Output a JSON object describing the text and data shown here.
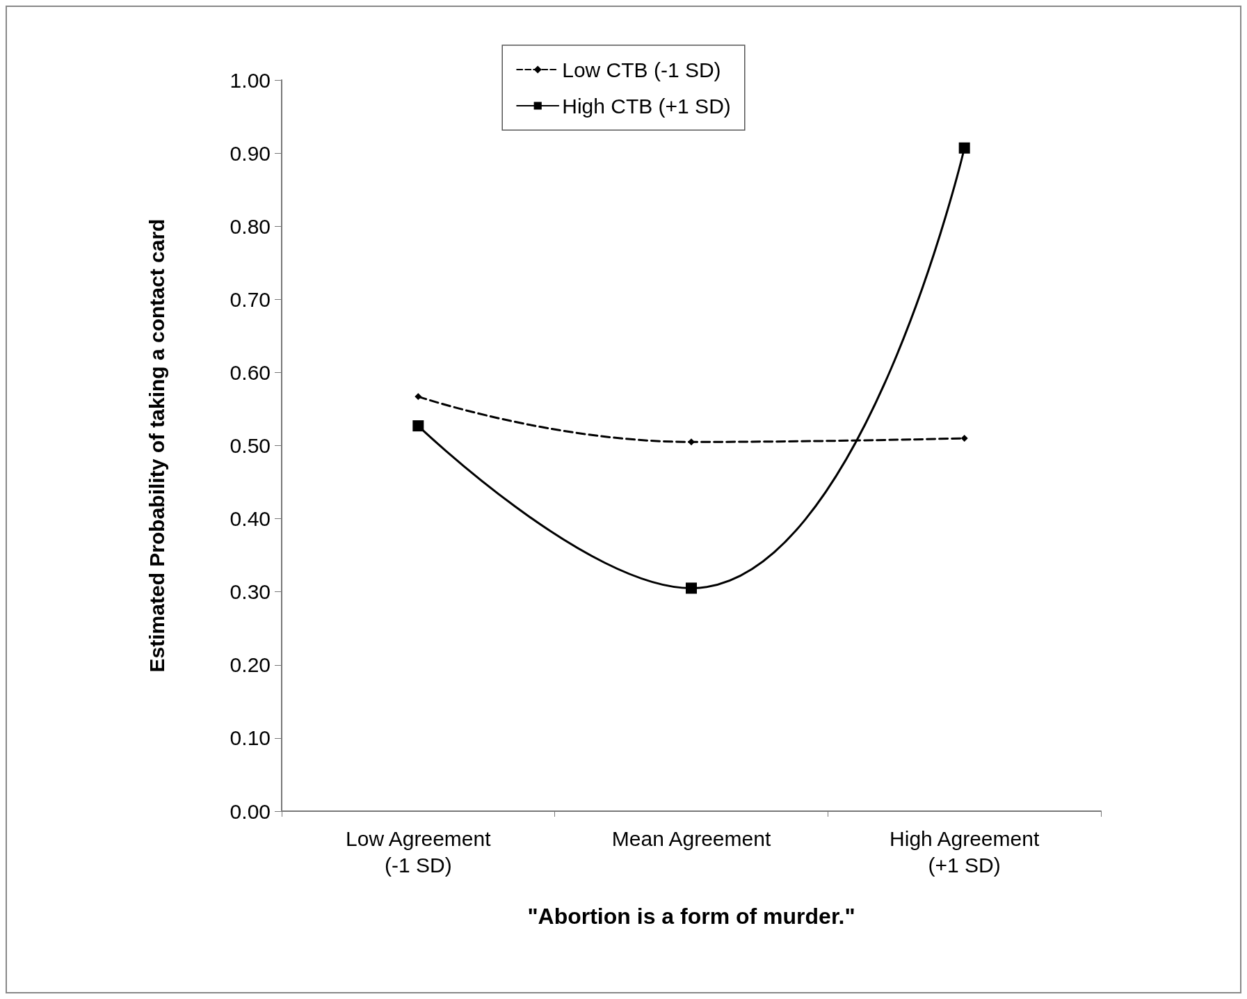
{
  "chart_data": {
    "type": "line",
    "xlabel": "\"Abortion is a form of murder.\"",
    "ylabel": "Estimated Probability of taking a contact card",
    "categories": [
      "Low Agreement\n(-1 SD)",
      "Mean Agreement",
      "High Agreement\n(+1 SD)"
    ],
    "series": [
      {
        "name": "Low CTB (-1 SD)",
        "color": "#000000",
        "values": [
          0.567,
          0.505,
          0.51
        ],
        "marker": "diamond",
        "line_style": "dashed"
      },
      {
        "name": "High CTB (+1 SD)",
        "color": "#000000",
        "values": [
          0.527,
          0.305,
          0.907
        ],
        "marker": "square",
        "line_style": "solid"
      }
    ],
    "ylim": [
      0,
      1
    ],
    "yticks": [
      {
        "value": 0,
        "label": "0.00"
      },
      {
        "value": 0.1,
        "label": "0.10"
      },
      {
        "value": 0.2,
        "label": "0.20"
      },
      {
        "value": 0.3,
        "label": "0.30"
      },
      {
        "value": 0.4,
        "label": "0.40"
      },
      {
        "value": 0.5,
        "label": "0.50"
      },
      {
        "value": 0.6,
        "label": "0.60"
      },
      {
        "value": 0.7,
        "label": "0.70"
      },
      {
        "value": 0.8,
        "label": "0.80"
      },
      {
        "value": 0.9,
        "label": "0.90"
      },
      {
        "value": 1,
        "label": "1.00"
      }
    ],
    "grid": false,
    "legend": "top"
  }
}
